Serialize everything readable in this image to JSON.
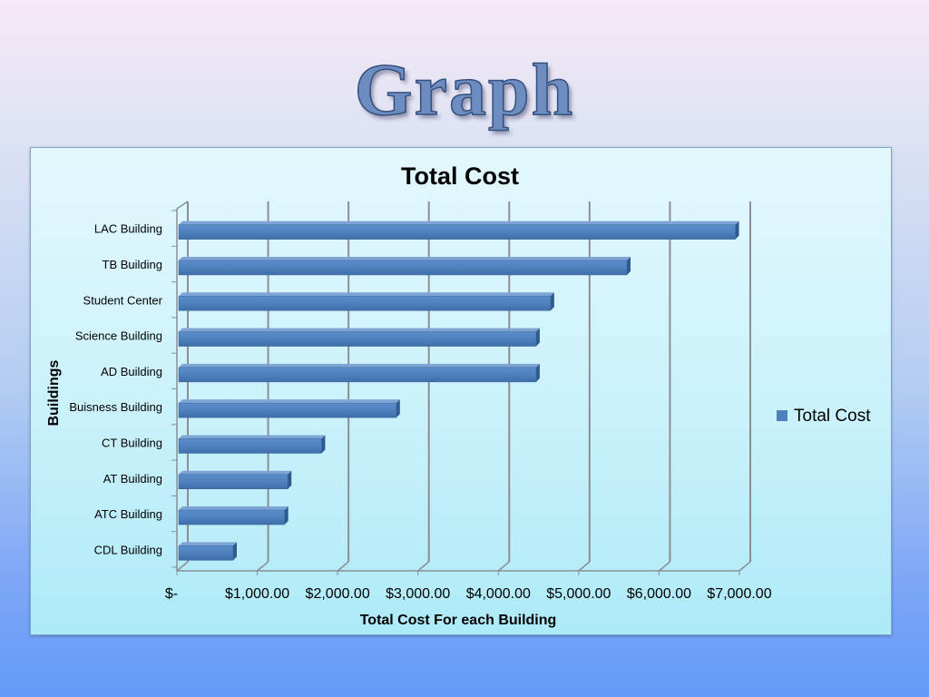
{
  "slide": {
    "title": "Graph"
  },
  "chart_data": {
    "type": "bar",
    "orientation": "horizontal",
    "title": "Total Cost",
    "xlabel": "Total Cost For each Building",
    "ylabel": "Buildings",
    "xlim": [
      0,
      7000
    ],
    "xticks": [
      0,
      1000,
      2000,
      3000,
      4000,
      5000,
      6000,
      7000
    ],
    "xtick_labels": [
      "$-",
      "$1,000.00",
      "$2,000.00",
      "$3,000.00",
      "$4,000.00",
      "$5,000.00",
      "$6,000.00",
      "$7,000.00"
    ],
    "grid": true,
    "legend_position": "right",
    "categories": [
      "LAC Building",
      "TB Building",
      "Student Center",
      "Science Building",
      "AD Building",
      "Buisness Building",
      "CT Building",
      "AT Building",
      "ATC Building",
      "CDL Building"
    ],
    "series": [
      {
        "name": "Total Cost",
        "color": "#4f81bd",
        "values": [
          6950,
          5600,
          4650,
          4470,
          4470,
          2730,
          1800,
          1380,
          1340,
          700
        ]
      }
    ]
  }
}
